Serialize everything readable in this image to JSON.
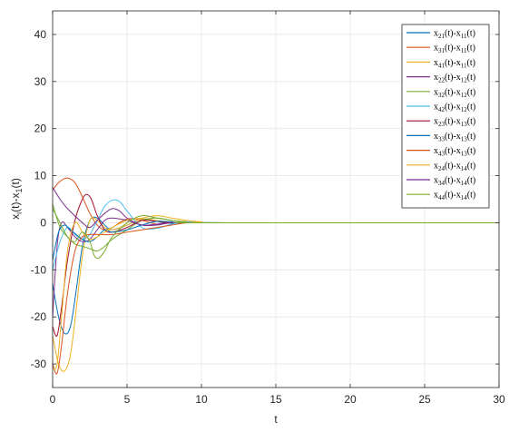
{
  "chart_data": {
    "type": "line",
    "title": "",
    "xlabel": "t",
    "ylabel": "x_i(t)-x_1(t)",
    "xlim": [
      0,
      30
    ],
    "ylim": [
      -35,
      45
    ],
    "xticks": [
      0,
      5,
      10,
      15,
      20,
      25,
      30
    ],
    "yticks": [
      -30,
      -20,
      -10,
      0,
      10,
      20,
      30,
      40
    ],
    "grid": true,
    "legend_position": "top-right",
    "series": [
      {
        "name": "x21(t)-x11(t)",
        "label": {
          "a": "x",
          "s1": "21",
          "b": "(t)-x",
          "s2": "11",
          "c": "(t)"
        },
        "color": "#0072BD",
        "points": [
          [
            0,
            -13
          ],
          [
            0.4,
            -20
          ],
          [
            0.8,
            -23.5
          ],
          [
            1.2,
            -22
          ],
          [
            1.6,
            -14
          ],
          [
            2.0,
            -5
          ],
          [
            2.5,
            0.5
          ],
          [
            3.0,
            1
          ],
          [
            3.5,
            -0.5
          ],
          [
            4.0,
            -1.5
          ],
          [
            5,
            -0.5
          ],
          [
            6,
            0.8
          ],
          [
            7,
            0.3
          ],
          [
            8,
            -0.1
          ],
          [
            10,
            0.1
          ],
          [
            12,
            0
          ],
          [
            30,
            0
          ]
        ]
      },
      {
        "name": "x31(t)-x11(t)",
        "label": {
          "a": "x",
          "s1": "31",
          "b": "(t)-x",
          "s2": "11",
          "c": "(t)"
        },
        "color": "#D95319",
        "points": [
          [
            0,
            7
          ],
          [
            0.5,
            8.8
          ],
          [
            1.0,
            9.5
          ],
          [
            1.5,
            8.5
          ],
          [
            2.0,
            5.5
          ],
          [
            2.5,
            2
          ],
          [
            3.0,
            -0.5
          ],
          [
            3.5,
            -1.5
          ],
          [
            4.0,
            -1
          ],
          [
            5,
            0.8
          ],
          [
            6,
            0.5
          ],
          [
            7,
            -0.3
          ],
          [
            8,
            0
          ],
          [
            10,
            0.1
          ],
          [
            12,
            0
          ],
          [
            30,
            0
          ]
        ]
      },
      {
        "name": "x41(t)-x11(t)",
        "label": {
          "a": "x",
          "s1": "41",
          "b": "(t)-x",
          "s2": "11",
          "c": "(t)"
        },
        "color": "#EDB120",
        "points": [
          [
            0,
            -24
          ],
          [
            0.4,
            -30
          ],
          [
            0.8,
            -31.5
          ],
          [
            1.2,
            -28
          ],
          [
            1.6,
            -18
          ],
          [
            2.0,
            -7
          ],
          [
            2.5,
            0.5
          ],
          [
            3.0,
            0.5
          ],
          [
            3.5,
            -1
          ],
          [
            4.0,
            -1.5
          ],
          [
            5,
            -0.5
          ],
          [
            6,
            0.8
          ],
          [
            7,
            0.5
          ],
          [
            8,
            0
          ],
          [
            10,
            0.1
          ],
          [
            12,
            0
          ],
          [
            30,
            0
          ]
        ]
      },
      {
        "name": "x22(t)-x12(t)",
        "label": {
          "a": "x",
          "s1": "22",
          "b": "(t)-x",
          "s2": "12",
          "c": "(t)"
        },
        "color": "#7E2F8E",
        "points": [
          [
            0,
            -20
          ],
          [
            0.3,
            -5
          ],
          [
            0.6,
            0
          ],
          [
            1.0,
            -1
          ],
          [
            1.5,
            -3
          ],
          [
            2.0,
            -4
          ],
          [
            2.5,
            -3.5
          ],
          [
            3.0,
            -1.5
          ],
          [
            3.5,
            0.5
          ],
          [
            4.0,
            1
          ],
          [
            5,
            0.5
          ],
          [
            6,
            -0.5
          ],
          [
            7,
            -0.3
          ],
          [
            8,
            0.1
          ],
          [
            10,
            0
          ],
          [
            30,
            0
          ]
        ]
      },
      {
        "name": "x32(t)-x12(t)",
        "label": {
          "a": "x",
          "s1": "32",
          "b": "(t)-x",
          "s2": "12",
          "c": "(t)"
        },
        "color": "#77AC30",
        "points": [
          [
            0,
            4
          ],
          [
            0.5,
            -1
          ],
          [
            1.0,
            -3
          ],
          [
            1.5,
            -4.5
          ],
          [
            2.0,
            -5
          ],
          [
            2.5,
            -5.5
          ],
          [
            3.0,
            -6
          ],
          [
            3.5,
            -5
          ],
          [
            4.0,
            -3.5
          ],
          [
            5,
            -1.5
          ],
          [
            6,
            0.5
          ],
          [
            7,
            1
          ],
          [
            8,
            0.5
          ],
          [
            9,
            0.2
          ],
          [
            10,
            0
          ],
          [
            30,
            0
          ]
        ]
      },
      {
        "name": "x42(t)-x12(t)",
        "label": {
          "a": "x",
          "s1": "42",
          "b": "(t)-x",
          "s2": "12",
          "c": "(t)"
        },
        "color": "#4DBEEE",
        "points": [
          [
            0,
            -10
          ],
          [
            0.5,
            -4
          ],
          [
            1.0,
            -1
          ],
          [
            1.5,
            -2.5
          ],
          [
            2.0,
            -3.5
          ],
          [
            2.5,
            -2.5
          ],
          [
            3.0,
            0.5
          ],
          [
            3.5,
            3.5
          ],
          [
            4.0,
            4.8
          ],
          [
            4.5,
            4.5
          ],
          [
            5,
            2.5
          ],
          [
            6,
            -1
          ],
          [
            7,
            -1.2
          ],
          [
            8,
            -0.3
          ],
          [
            9,
            0.2
          ],
          [
            10,
            0.1
          ],
          [
            12,
            0
          ],
          [
            30,
            0
          ]
        ]
      },
      {
        "name": "x23(t)-x13(t)",
        "label": {
          "a": "x",
          "s1": "23",
          "b": "(t)-x",
          "s2": "13",
          "c": "(t)"
        },
        "color": "#A2142F",
        "points": [
          [
            0,
            -22
          ],
          [
            0.3,
            -24
          ],
          [
            0.6,
            -18
          ],
          [
            1.0,
            -8
          ],
          [
            1.5,
            0.5
          ],
          [
            2.0,
            5
          ],
          [
            2.3,
            6
          ],
          [
            2.6,
            5
          ],
          [
            3.0,
            1.5
          ],
          [
            3.5,
            -1.5
          ],
          [
            4.0,
            -2
          ],
          [
            5,
            -1
          ],
          [
            6,
            0.5
          ],
          [
            7,
            0.3
          ],
          [
            8,
            0
          ],
          [
            10,
            0
          ],
          [
            30,
            0
          ]
        ]
      },
      {
        "name": "x33(t)-x13(t)",
        "label": {
          "a": "x",
          "s1": "33",
          "b": "(t)-x",
          "s2": "13",
          "c": "(t)"
        },
        "color": "#0072BD",
        "points": [
          [
            0,
            -8
          ],
          [
            0.4,
            -2
          ],
          [
            0.8,
            -0.5
          ],
          [
            1.2,
            -1.5
          ],
          [
            2.0,
            -3.5
          ],
          [
            2.5,
            -4
          ],
          [
            3.0,
            -3
          ],
          [
            3.5,
            -1.5
          ],
          [
            4.0,
            -2
          ],
          [
            5,
            -1.5
          ],
          [
            6,
            -0.5
          ],
          [
            7,
            0.3
          ],
          [
            8,
            0.2
          ],
          [
            10,
            0
          ],
          [
            30,
            0
          ]
        ]
      },
      {
        "name": "x43(t)-x13(t)",
        "label": {
          "a": "x",
          "s1": "43",
          "b": "(t)-x",
          "s2": "13",
          "c": "(t)"
        },
        "color": "#D95319",
        "points": [
          [
            0,
            -30
          ],
          [
            0.3,
            -32
          ],
          [
            0.6,
            -26
          ],
          [
            1.0,
            -15
          ],
          [
            1.5,
            -6
          ],
          [
            2.0,
            -3
          ],
          [
            2.5,
            -2.5
          ],
          [
            3.0,
            -2.5
          ],
          [
            4,
            -2.5
          ],
          [
            5,
            -2
          ],
          [
            6,
            -1.5
          ],
          [
            7,
            -1
          ],
          [
            8,
            -0.5
          ],
          [
            9,
            0
          ],
          [
            10,
            0
          ],
          [
            30,
            0
          ]
        ]
      },
      {
        "name": "x24(t)-x14(t)",
        "label": {
          "a": "x",
          "s1": "24",
          "b": "(t)-x",
          "s2": "14",
          "c": "(t)"
        },
        "color": "#EDB120",
        "points": [
          [
            0,
            -31
          ],
          [
            0.3,
            -30
          ],
          [
            0.6,
            -20
          ],
          [
            1.0,
            -6
          ],
          [
            1.5,
            0
          ],
          [
            2.0,
            -2
          ],
          [
            2.5,
            -3.5
          ],
          [
            3.0,
            -3
          ],
          [
            4,
            -1
          ],
          [
            5,
            0.5
          ],
          [
            6,
            1
          ],
          [
            7,
            1.5
          ],
          [
            8,
            1
          ],
          [
            9,
            0.5
          ],
          [
            10,
            0.2
          ],
          [
            11,
            0
          ],
          [
            30,
            0
          ]
        ]
      },
      {
        "name": "x34(t)-x14(t)",
        "label": {
          "a": "x",
          "s1": "34",
          "b": "(t)-x",
          "s2": "14",
          "c": "(t)"
        },
        "color": "#7E2F8E",
        "points": [
          [
            0,
            7.5
          ],
          [
            0.5,
            5
          ],
          [
            1.0,
            3
          ],
          [
            2.0,
            0
          ],
          [
            2.5,
            -1
          ],
          [
            3.0,
            0.5
          ],
          [
            3.5,
            2
          ],
          [
            4.0,
            3
          ],
          [
            4.5,
            2.5
          ],
          [
            5,
            1
          ],
          [
            6,
            -0.5
          ],
          [
            7,
            -0.5
          ],
          [
            8,
            0
          ],
          [
            10,
            0
          ],
          [
            30,
            0
          ]
        ]
      },
      {
        "name": "x44(t)-x14(t)",
        "label": {
          "a": "x",
          "s1": "44",
          "b": "(t)-x",
          "s2": "14",
          "c": "(t)"
        },
        "color": "#77AC30",
        "points": [
          [
            0,
            3
          ],
          [
            0.5,
            0
          ],
          [
            1.0,
            -3
          ],
          [
            1.5,
            -4
          ],
          [
            2.0,
            -2
          ],
          [
            2.5,
            -4
          ],
          [
            2.8,
            -7
          ],
          [
            3.1,
            -7.5
          ],
          [
            3.5,
            -6
          ],
          [
            4,
            -3
          ],
          [
            5,
            0
          ],
          [
            6,
            1.5
          ],
          [
            7,
            1
          ],
          [
            8,
            0.5
          ],
          [
            9,
            0.2
          ],
          [
            10,
            0
          ],
          [
            30,
            0
          ]
        ]
      }
    ]
  }
}
